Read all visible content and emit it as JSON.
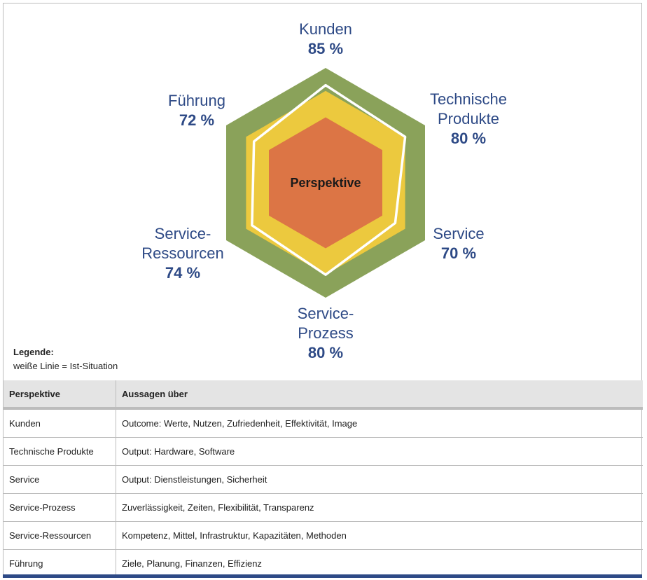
{
  "chart_data": {
    "type": "radar",
    "center_label": "Perspektive",
    "axes": [
      {
        "name": "Kunden",
        "value": 85,
        "value_label": "85 %"
      },
      {
        "name": "Technische Produkte",
        "value": 80,
        "value_label": "80 %"
      },
      {
        "name": "Service",
        "value": 70,
        "value_label": "70 %"
      },
      {
        "name": "Service-Prozess",
        "value": 80,
        "value_label": "80 %"
      },
      {
        "name": "Service-Ressourcen",
        "value": 74,
        "value_label": "74 %"
      },
      {
        "name": "Führung",
        "value": 72,
        "value_label": "72 %"
      }
    ],
    "axis_label_lines": [
      [
        "Kunden"
      ],
      [
        "Technische",
        "Produkte"
      ],
      [
        "Service"
      ],
      [
        "Service-",
        "Prozess"
      ],
      [
        "Service-",
        "Ressourcen"
      ],
      [
        "Führung"
      ]
    ],
    "bands": [
      {
        "level": 100,
        "color": "#8aa25a"
      },
      {
        "level": 80,
        "color": "#ecc93e"
      },
      {
        "level": 57,
        "color": "#dc7545"
      }
    ],
    "actual_line_color": "#ffffff",
    "label_color": "#2e4a86",
    "legend": {
      "title": "Legende:",
      "text": "weiße Linie = Ist-Situation"
    }
  },
  "table": {
    "headers": [
      "Perspektive",
      "Aussagen über"
    ],
    "rows": [
      [
        "Kunden",
        "Outcome: Werte, Nutzen, Zufriedenheit, Effektivität, Image"
      ],
      [
        "Technische Produkte",
        "Output: Hardware, Software"
      ],
      [
        "Service",
        "Output: Dienstleistungen, Sicherheit"
      ],
      [
        "Service-Prozess",
        "Zuverlässigkeit, Zeiten, Flexibilität, Transparenz"
      ],
      [
        "Service-Ressourcen",
        "Kompetenz, Mittel, Infrastruktur, Kapazitäten, Methoden"
      ],
      [
        "Führung",
        "Ziele, Planung, Finanzen, Effizienz"
      ]
    ]
  }
}
